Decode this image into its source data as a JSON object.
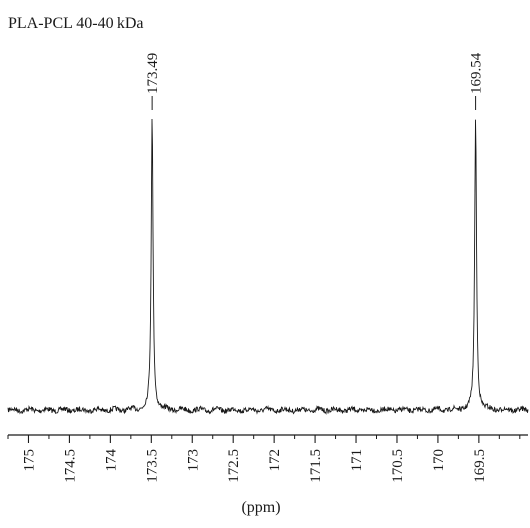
{
  "chart_data": {
    "type": "line",
    "title": "PLA-PCL 40-40 kDa",
    "xlabel": "(ppm)",
    "ylabel": "",
    "x_reversed": true,
    "xlim": [
      175.25,
      168.9
    ],
    "x_ticks": [
      175,
      174.5,
      174,
      173.5,
      173,
      172.5,
      172,
      171.5,
      171,
      170.5,
      170,
      169.5
    ],
    "x_tick_labels": [
      "175",
      "174.5",
      "174",
      "173.5",
      "173",
      "172.5",
      "172",
      "171.5",
      "171",
      "170.5",
      "170",
      "169.5"
    ],
    "peaks": [
      {
        "ppm": 173.49,
        "label": "173.49",
        "relative_intensity": 1.0
      },
      {
        "ppm": 169.54,
        "label": "169.54",
        "relative_intensity": 1.0
      }
    ],
    "baseline_noise": true,
    "grid": false,
    "legend": "none",
    "line_color": "#1a1a1a"
  }
}
